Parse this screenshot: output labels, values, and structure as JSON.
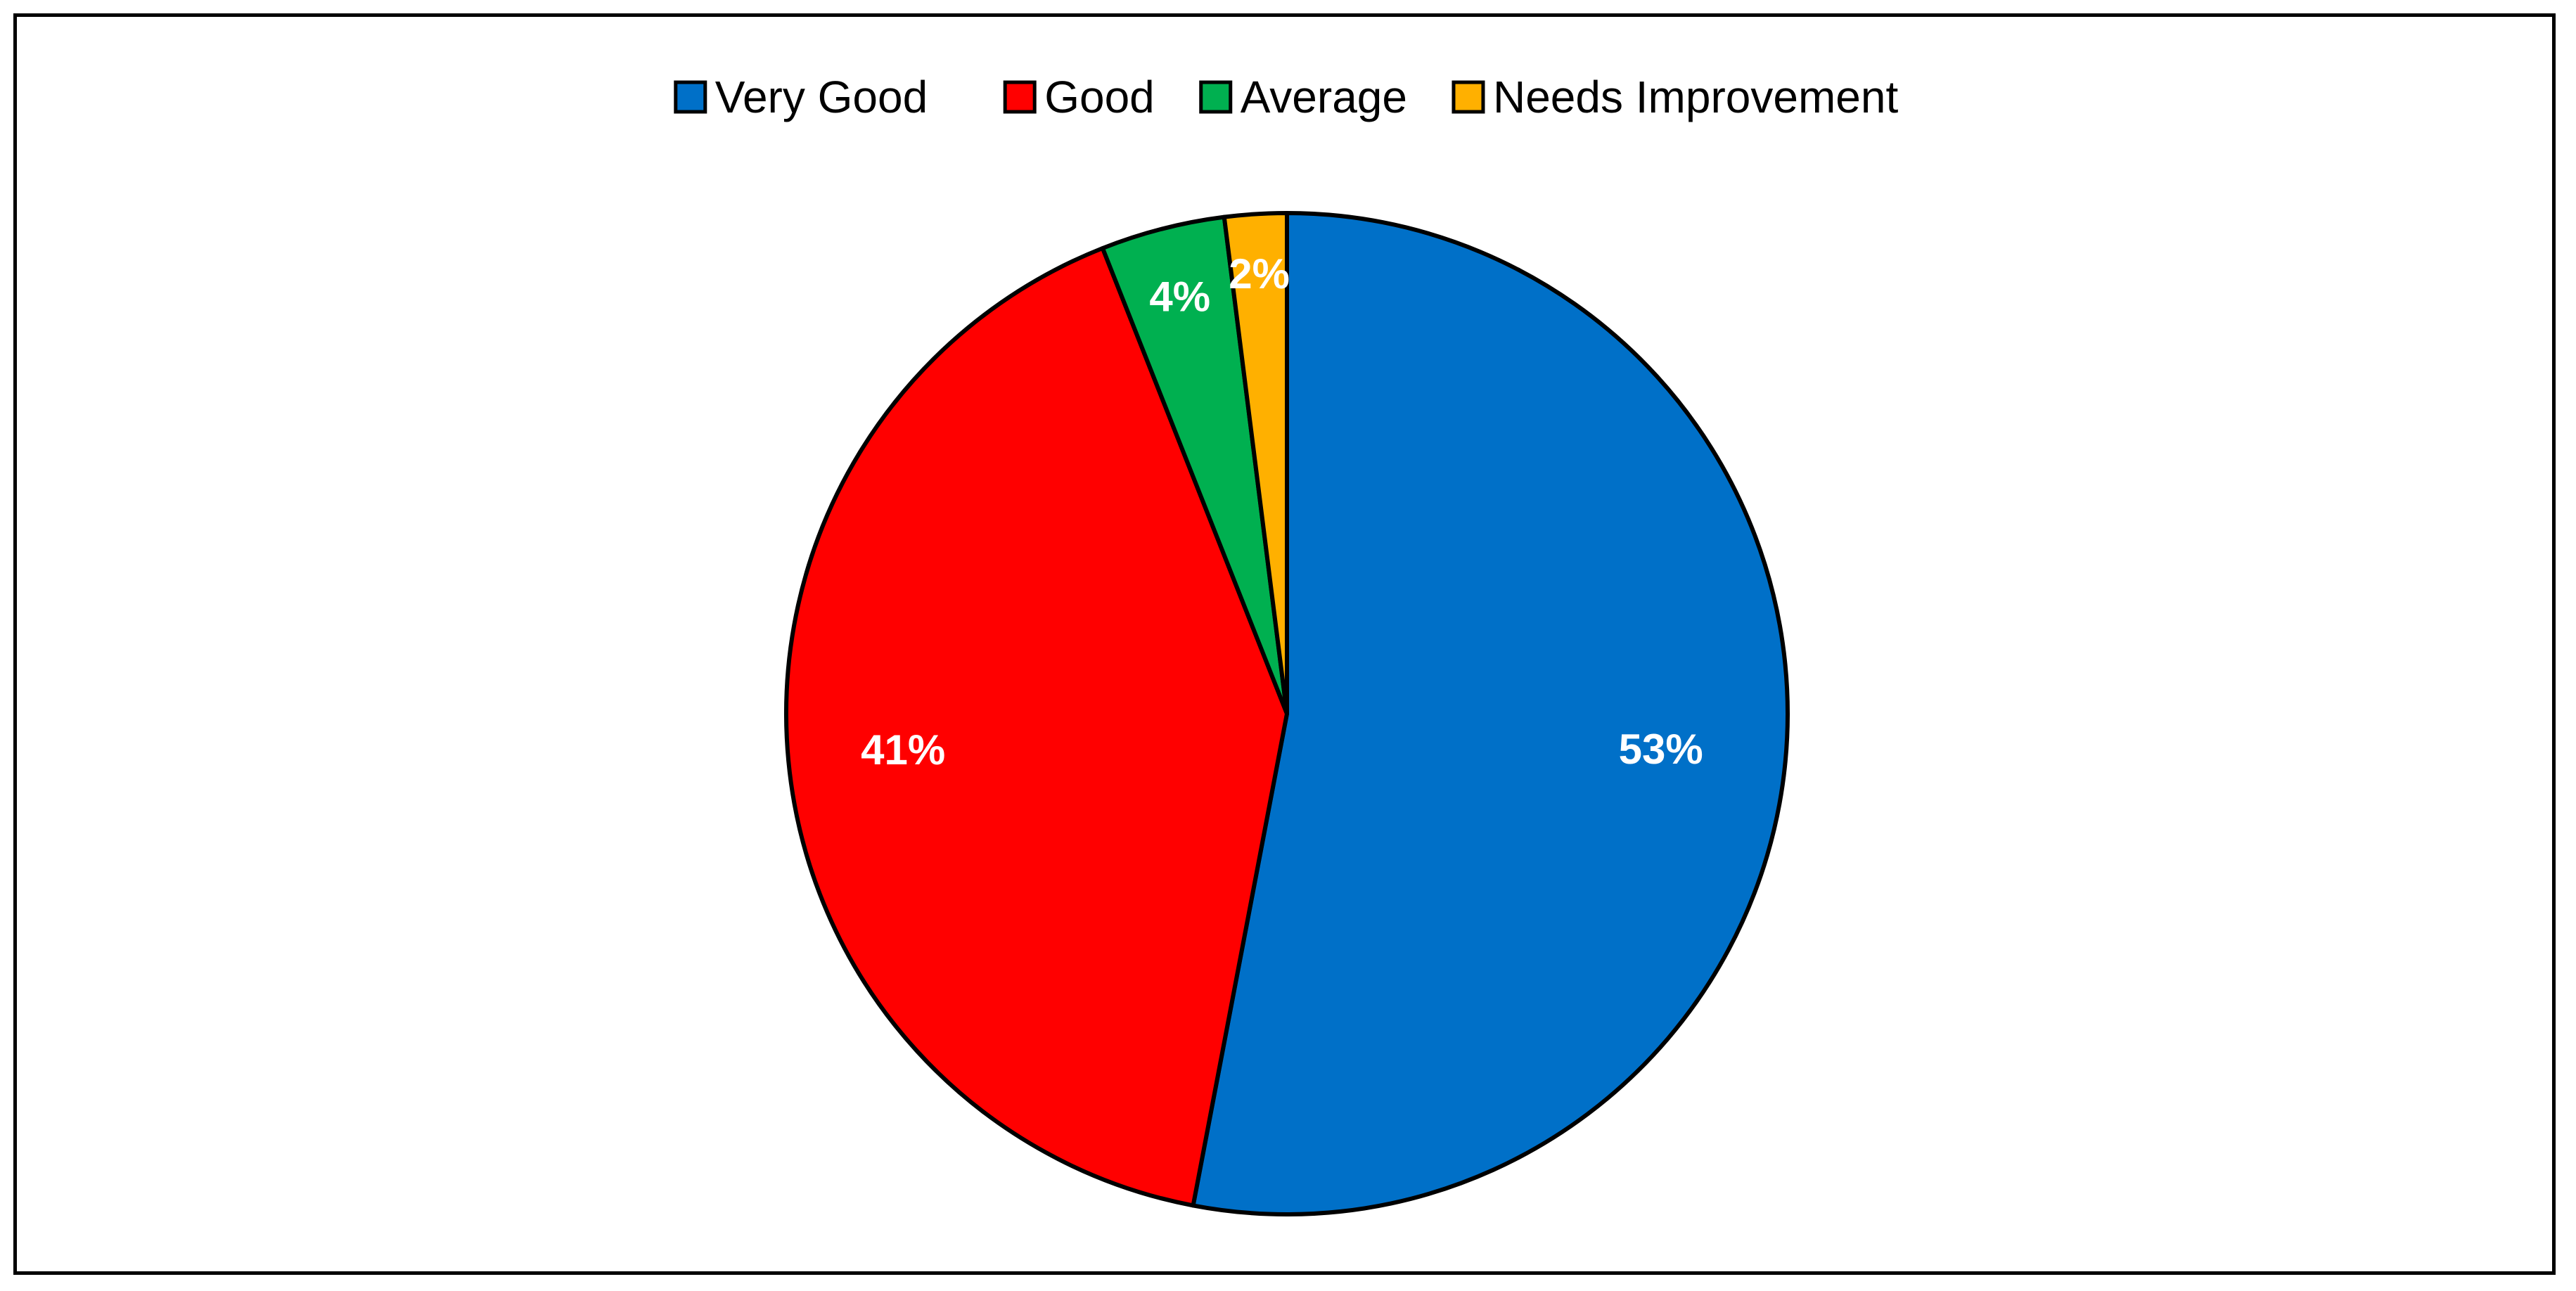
{
  "chart_data": {
    "type": "pie",
    "title": "",
    "legend_position": "top",
    "slices": [
      {
        "name": "Very Good",
        "value": 53,
        "label": "53%",
        "color": "#0070C8"
      },
      {
        "name": "Good",
        "value": 41,
        "label": "41%",
        "color": "#FF0000"
      },
      {
        "name": "Average",
        "value": 4,
        "label": "4%",
        "color": "#00B050"
      },
      {
        "name": "Needs Improvement",
        "value": 2,
        "label": "2%",
        "color": "#FFB000"
      }
    ],
    "start_angle_deg": 0,
    "direction": "clockwise"
  }
}
